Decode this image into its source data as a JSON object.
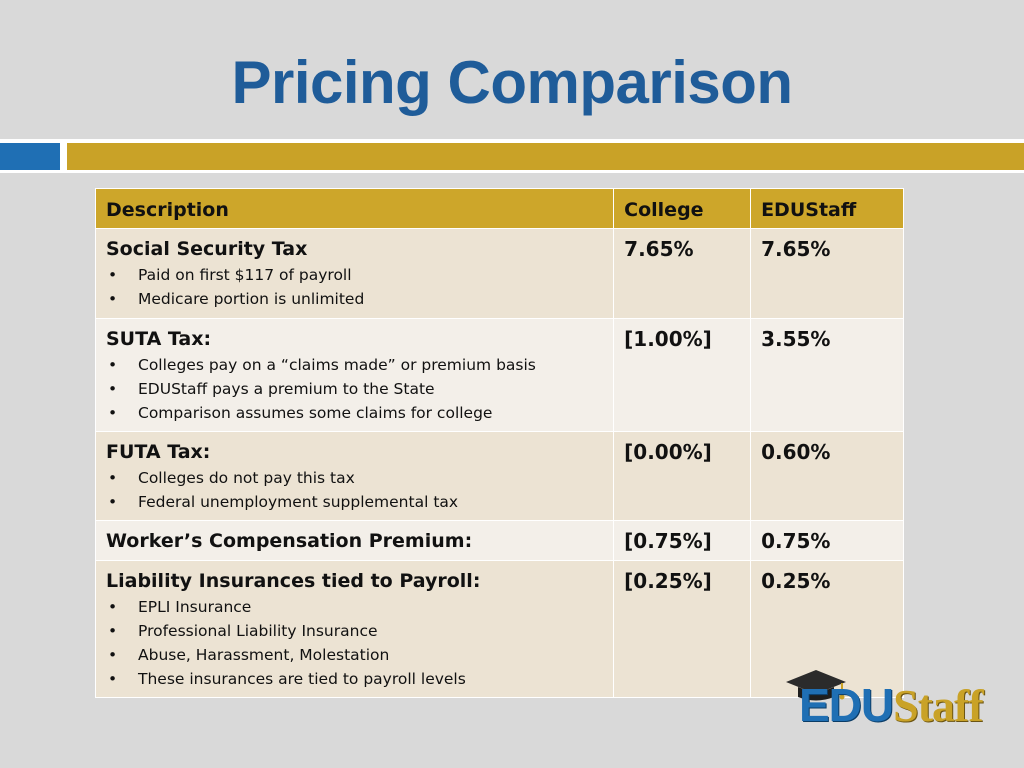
{
  "slide": {
    "title": "Pricing Comparison"
  },
  "table": {
    "headers": {
      "description": "Description",
      "college": "College",
      "edustaff": "EDUStaff"
    },
    "rows": [
      {
        "label": "Social Security Tax",
        "bullets": [
          "Paid on first $117 of payroll",
          "Medicare portion is unlimited"
        ],
        "college": "7.65%",
        "edustaff": "7.65%"
      },
      {
        "label": "SUTA Tax:",
        "bullets": [
          "Colleges pay on a “claims made” or premium basis",
          "EDUStaff pays a premium to the State",
          "Comparison assumes some claims for college"
        ],
        "college": "[1.00%]",
        "edustaff": "3.55%"
      },
      {
        "label": "FUTA Tax:",
        "bullets": [
          "Colleges do not pay this tax",
          "Federal unemployment supplemental tax"
        ],
        "college": "[0.00%]",
        "edustaff": "0.60%"
      },
      {
        "label": "Worker’s Compensation Premium:",
        "bullets": [],
        "college": "[0.75%]",
        "edustaff": "0.75%"
      },
      {
        "label": "Liability Insurances tied to Payroll:",
        "bullets": [
          "EPLI Insurance",
          "Professional Liability Insurance",
          "Abuse, Harassment, Molestation",
          "These insurances are tied to payroll levels"
        ],
        "college": "[0.25%]",
        "edustaff": "0.25%"
      }
    ]
  },
  "logo": {
    "part1": "EDU",
    "part2": "Staff",
    "icon": "graduation-cap-icon"
  },
  "colors": {
    "title": "#1f5c99",
    "accent_blue": "#1f6fb4",
    "accent_gold": "#c9a227"
  }
}
